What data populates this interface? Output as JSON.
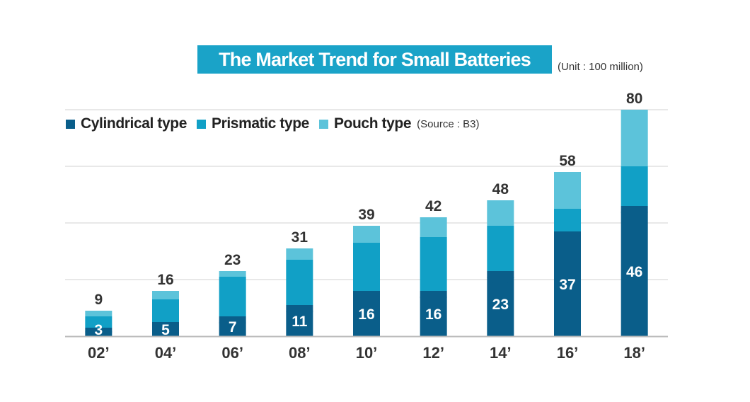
{
  "title": "The Market Trend for Small Batteries",
  "unit_note": "(Unit : 100 million)",
  "source_note": "(Source : B3)",
  "colors": {
    "cylindrical": "#0a5e8a",
    "prismatic": "#11a0c6",
    "pouch": "#5cc3da",
    "title_bg": "#1aa3c8",
    "grid": "#d0d0d0",
    "axis": "#bbbbbb"
  },
  "legend": [
    {
      "label": "Cylindrical type",
      "color": "#0a5e8a"
    },
    {
      "label": "Prismatic type",
      "color": "#11a0c6"
    },
    {
      "label": "Pouch type",
      "color": "#5cc3da"
    }
  ],
  "chart_data": {
    "type": "bar",
    "stacked": true,
    "title": "The Market Trend for Small Batteries",
    "categories": [
      "02’",
      "04’",
      "06’",
      "08’",
      "10’",
      "12’",
      "14’",
      "16’",
      "18’"
    ],
    "series": [
      {
        "name": "Cylindrical type",
        "values": [
          3,
          5,
          7,
          11,
          16,
          16,
          23,
          37,
          46
        ]
      },
      {
        "name": "Prismatic type",
        "values": [
          4,
          8,
          14,
          16,
          17,
          19,
          16,
          8,
          14
        ]
      },
      {
        "name": "Pouch type",
        "values": [
          2,
          3,
          2,
          4,
          6,
          7,
          9,
          13,
          20
        ]
      }
    ],
    "totals": [
      9,
      16,
      23,
      31,
      39,
      42,
      48,
      58,
      80
    ],
    "cylindrical_labels": [
      "3",
      "5",
      "7",
      "11",
      "16",
      "16",
      "23",
      "37",
      "46"
    ],
    "ylim": [
      0,
      80
    ],
    "grid": true,
    "legend_position": "top-left"
  }
}
